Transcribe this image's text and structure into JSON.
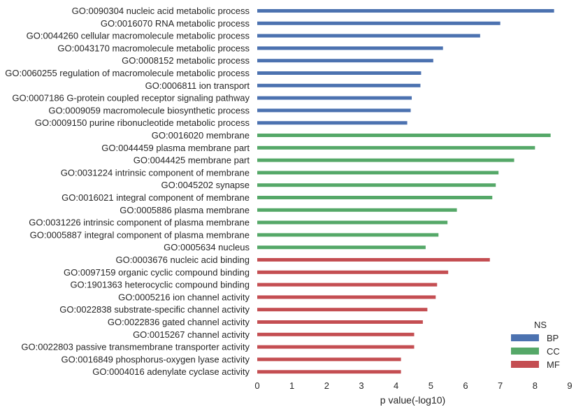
{
  "chart_data": {
    "type": "bar",
    "orientation": "horizontal",
    "xlabel": "p value(-log10)",
    "ylabel": "",
    "title": "",
    "xlim": [
      0,
      9
    ],
    "xticks": [
      0,
      1,
      2,
      3,
      4,
      5,
      6,
      7,
      8,
      9
    ],
    "grid": false,
    "legend": {
      "title": "NS",
      "placement": "bottom-right",
      "entries": [
        {
          "name": "BP",
          "color": "#4c72b0"
        },
        {
          "name": "CC",
          "color": "#55a868"
        },
        {
          "name": "MF",
          "color": "#c44e52"
        }
      ]
    },
    "categories": [
      {
        "label": "GO:0090304 nucleic acid metabolic process",
        "value": 8.55,
        "ns": "BP"
      },
      {
        "label": "GO:0016070 RNA metabolic process",
        "value": 7.0,
        "ns": "BP"
      },
      {
        "label": "GO:0044260 cellular macromolecule metabolic process",
        "value": 6.42,
        "ns": "BP"
      },
      {
        "label": "GO:0043170 macromolecule metabolic process",
        "value": 5.35,
        "ns": "BP"
      },
      {
        "label": "GO:0008152 metabolic process",
        "value": 5.07,
        "ns": "BP"
      },
      {
        "label": "GO:0060255 regulation of macromolecule metabolic process",
        "value": 4.72,
        "ns": "BP"
      },
      {
        "label": "GO:0006811 ion transport",
        "value": 4.7,
        "ns": "BP"
      },
      {
        "label": "GO:0007186 G-protein coupled receptor signaling pathway",
        "value": 4.45,
        "ns": "BP"
      },
      {
        "label": "GO:0009059 macromolecule biosynthetic process",
        "value": 4.42,
        "ns": "BP"
      },
      {
        "label": "GO:0009150 purine ribonucleotide metabolic process",
        "value": 4.32,
        "ns": "BP"
      },
      {
        "label": "GO:0016020 membrane",
        "value": 8.45,
        "ns": "CC"
      },
      {
        "label": "GO:0044459 plasma membrane part",
        "value": 8.0,
        "ns": "CC"
      },
      {
        "label": "GO:0044425 membrane part",
        "value": 7.4,
        "ns": "CC"
      },
      {
        "label": "GO:0031224 intrinsic component of membrane",
        "value": 6.95,
        "ns": "CC"
      },
      {
        "label": "GO:0045202 synapse",
        "value": 6.87,
        "ns": "CC"
      },
      {
        "label": "GO:0016021 integral component of membrane",
        "value": 6.77,
        "ns": "CC"
      },
      {
        "label": "GO:0005886 plasma membrane",
        "value": 5.75,
        "ns": "CC"
      },
      {
        "label": "GO:0031226 intrinsic component of plasma membrane",
        "value": 5.48,
        "ns": "CC"
      },
      {
        "label": "GO:0005887 integral component of plasma membrane",
        "value": 5.22,
        "ns": "CC"
      },
      {
        "label": "GO:0005634 nucleus",
        "value": 4.85,
        "ns": "CC"
      },
      {
        "label": "GO:0003676 nucleic acid binding",
        "value": 6.7,
        "ns": "MF"
      },
      {
        "label": "GO:0097159 organic cyclic compound binding",
        "value": 5.5,
        "ns": "MF"
      },
      {
        "label": "GO:1901363 heterocyclic compound binding",
        "value": 5.18,
        "ns": "MF"
      },
      {
        "label": "GO:0005216 ion channel activity",
        "value": 5.14,
        "ns": "MF"
      },
      {
        "label": "GO:0022838 substrate-specific channel activity",
        "value": 4.9,
        "ns": "MF"
      },
      {
        "label": "GO:0022836 gated channel activity",
        "value": 4.77,
        "ns": "MF"
      },
      {
        "label": "GO:0015267 channel activity",
        "value": 4.52,
        "ns": "MF"
      },
      {
        "label": "GO:0022803 passive transmembrane transporter activity",
        "value": 4.52,
        "ns": "MF"
      },
      {
        "label": "GO:0016849 phosphorus-oxygen lyase activity",
        "value": 4.14,
        "ns": "MF"
      },
      {
        "label": "GO:0004016 adenylate cyclase activity",
        "value": 4.14,
        "ns": "MF"
      }
    ]
  }
}
